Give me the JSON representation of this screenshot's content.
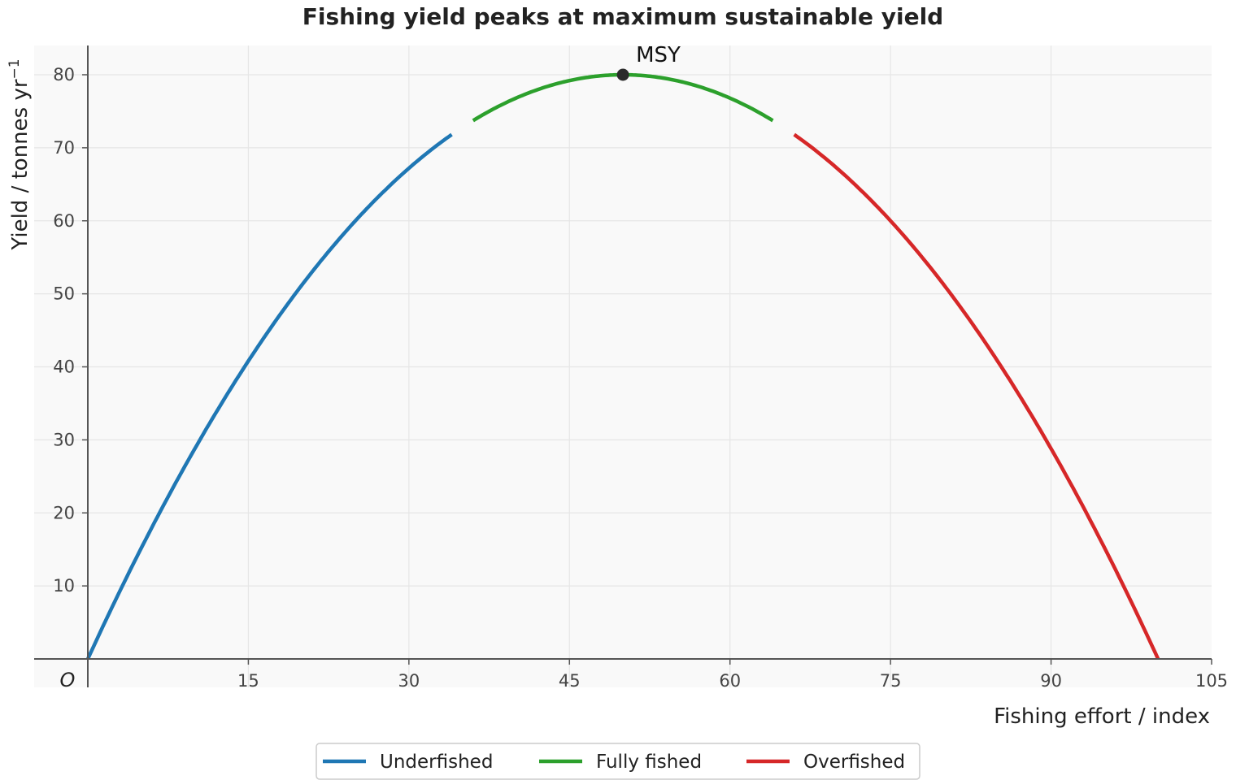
{
  "chart_data": {
    "type": "line",
    "title": "Fishing yield peaks at maximum sustainable yield",
    "xlabel": "Fishing effort / index",
    "ylabel": "Yield / tonnes yr",
    "ylabel_superscript": "−1",
    "origin_label": "O",
    "xlim": [
      0,
      105
    ],
    "ylim": [
      0,
      84
    ],
    "xticks": [
      15,
      30,
      45,
      60,
      75,
      90,
      105
    ],
    "yticks": [
      10,
      20,
      30,
      40,
      50,
      60,
      70,
      80
    ],
    "grid": true,
    "legend_position": "bottom-center",
    "model": {
      "form": "y = 0.032 * x * (100 - x)"
    },
    "series": [
      {
        "name": "Underfished",
        "color": "#1f77b4",
        "x_range": [
          0,
          34
        ],
        "x": [
          0,
          5,
          10,
          15,
          20,
          25,
          30,
          34
        ],
        "y": [
          0,
          15.2,
          28.8,
          40.8,
          51.2,
          60,
          67.2,
          71.8
        ]
      },
      {
        "name": "Fully fished",
        "color": "#2ca02c",
        "x_range": [
          36,
          64
        ],
        "x": [
          36,
          40,
          45,
          50,
          55,
          60,
          64
        ],
        "y": [
          73.7,
          76.8,
          79.2,
          80,
          79.2,
          76.8,
          73.7
        ]
      },
      {
        "name": "Overfished",
        "color": "#d62728",
        "x_range": [
          66,
          100
        ],
        "x": [
          66,
          70,
          75,
          80,
          85,
          90,
          95,
          100
        ],
        "y": [
          71.8,
          67.2,
          60,
          51.2,
          40.8,
          28.8,
          15.2,
          0
        ]
      }
    ],
    "annotations": [
      {
        "text": "MSY",
        "x": 50,
        "y": 80,
        "color": "#2b2b2b"
      }
    ]
  }
}
